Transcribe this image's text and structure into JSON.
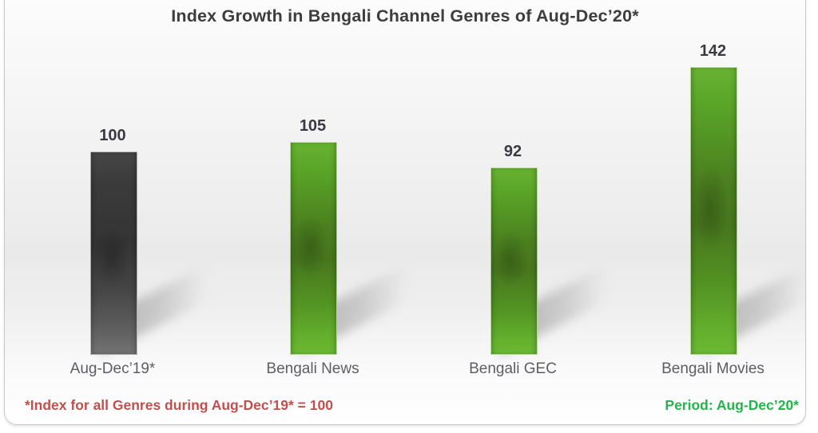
{
  "chart_data": {
    "type": "bar",
    "title": "Index Growth in Bengali Channel Genres of Aug-Dec’20*",
    "categories": [
      "Aug-Dec’19*",
      "Bengali News",
      "Bengali GEC",
      "Bengali Movies"
    ],
    "values": [
      100,
      105,
      92,
      142
    ],
    "bars": [
      {
        "label": "Aug-Dec’19*",
        "value": 100,
        "color": "gray"
      },
      {
        "label": "Bengali News",
        "value": 105,
        "color": "green"
      },
      {
        "label": "Bengali GEC",
        "value": 92,
        "color": "green"
      },
      {
        "label": "Bengali Movies",
        "value": 142,
        "color": "green"
      }
    ],
    "ylim": [
      0,
      150
    ],
    "gridlines": false,
    "legend": "none",
    "axis_lines": "none",
    "colors": {
      "gray_bar": "#3b3b3b",
      "green_bar": "#5aa628",
      "green_bar_dark": "#47761d",
      "title_text": "#3d3d3d",
      "value_label_text": "#3a3a42",
      "category_label_text": "#5d5d66"
    }
  },
  "footnotes": {
    "left": "*Index for all Genres during Aug-Dec’19* = 100",
    "right": "Period: Aug-Dec’20*",
    "left_color": "#c0504d",
    "right_color": "#24b54a"
  }
}
